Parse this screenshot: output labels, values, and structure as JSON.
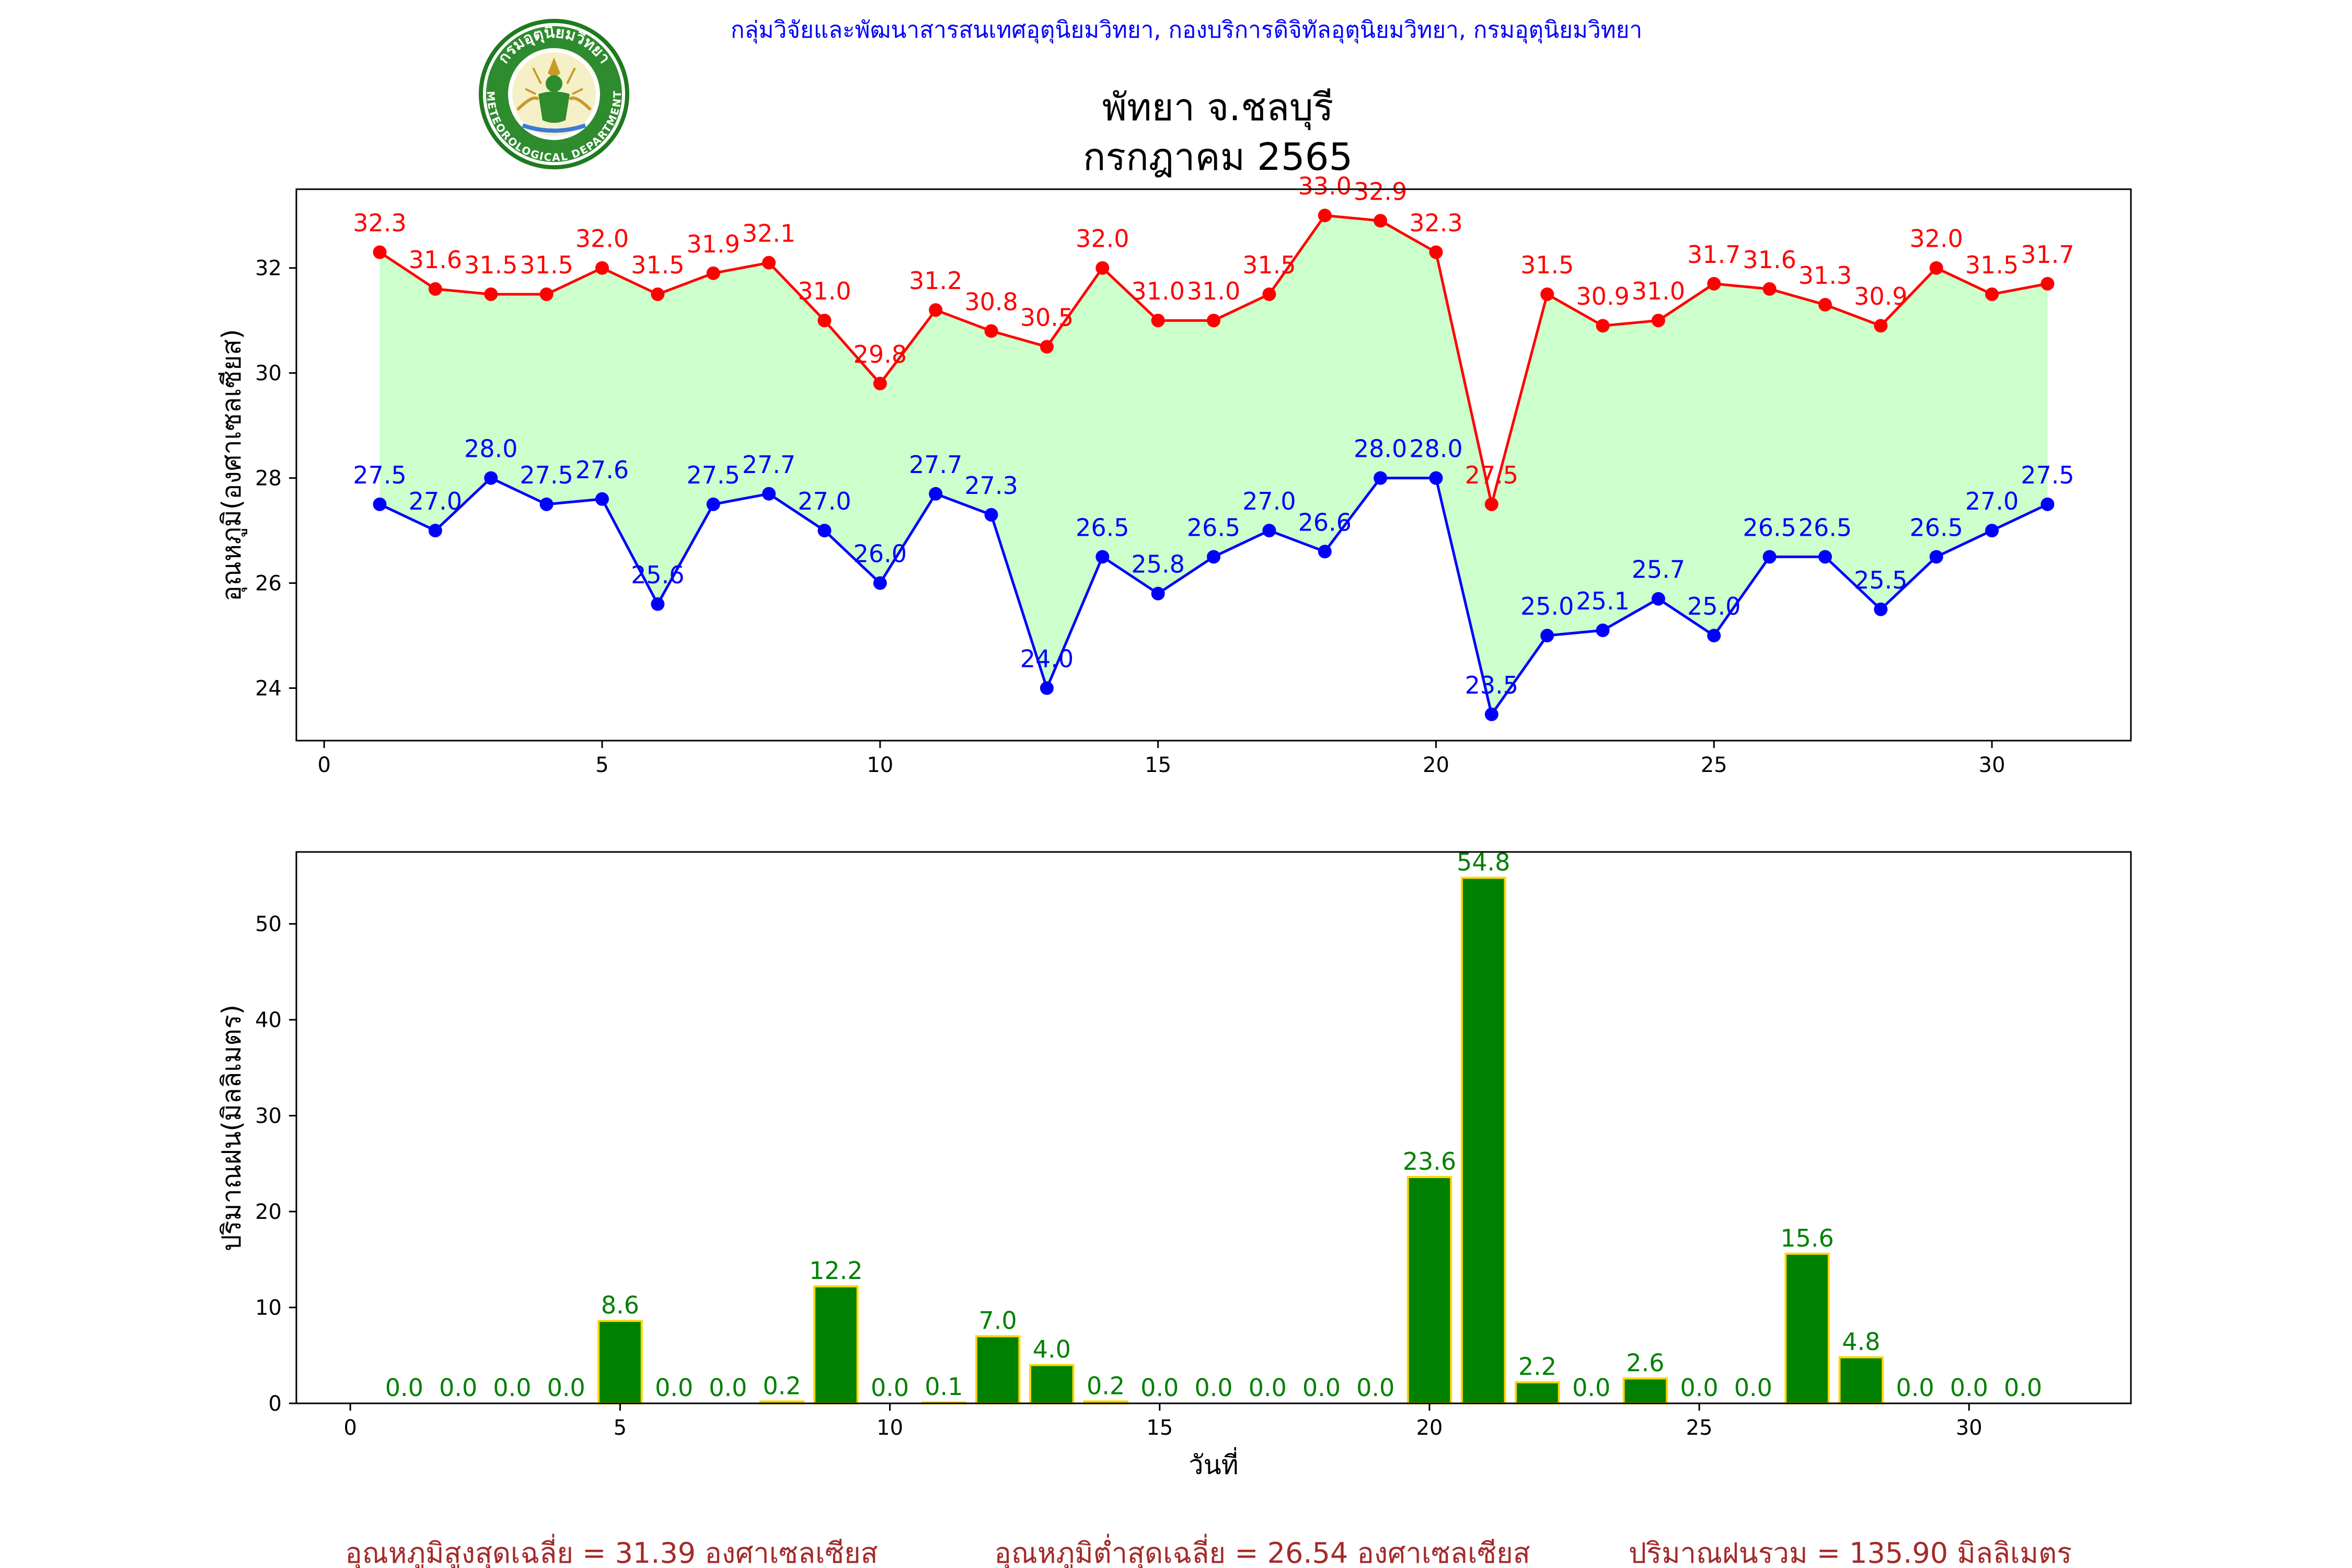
{
  "header": {
    "organization": "กลุ่มวิจัยและพัฒนาสารสนเทศอุตุนิยมวิทยา, กองบริการดิจิทัลอุตุนิยมวิทยา, กรมอุตุนิยมวิทยา",
    "title_line1": "พัทยา จ.ชลบุรี",
    "title_line2": "กรกฎาคม 2565",
    "logo_top_text": "กรมอุตุนิยมวิทยา",
    "logo_bottom_text": "METEOROLOGICAL DEPARTMENT"
  },
  "colors": {
    "max_temp": "#ff0000",
    "min_temp": "#0000ff",
    "fill": "#ccffcc",
    "rain_bar": "#008000",
    "rain_edge": "#ffd700",
    "rain_label": "#008000",
    "header_text": "#0000ff",
    "summary_text": "#a52a2a"
  },
  "chart_data": [
    {
      "type": "line",
      "ylabel": "อุณหภูมิ(องศาเซลเซียส)",
      "xlim": [
        -0.5,
        32.5
      ],
      "ylim": [
        23,
        33.5
      ],
      "xticks": [
        0,
        5,
        10,
        15,
        20,
        25,
        30
      ],
      "yticks": [
        24,
        26,
        28,
        30,
        32
      ],
      "fill_between": true,
      "x": [
        1,
        2,
        3,
        4,
        5,
        6,
        7,
        8,
        9,
        10,
        11,
        12,
        13,
        14,
        15,
        16,
        17,
        18,
        19,
        20,
        21,
        22,
        23,
        24,
        25,
        26,
        27,
        28,
        29,
        30,
        31
      ],
      "series": [
        {
          "values": [
            32.3,
            31.6,
            31.5,
            31.5,
            32.0,
            31.5,
            31.9,
            32.1,
            31.0,
            29.8,
            31.2,
            30.8,
            30.5,
            32.0,
            31.0,
            31.0,
            31.5,
            33.0,
            32.9,
            32.3,
            27.5,
            31.5,
            30.9,
            31.0,
            31.7,
            31.6,
            31.3,
            30.9,
            32.0,
            31.5,
            31.7
          ],
          "labels": [
            "32.3",
            "31.6",
            "31.5",
            "31.5",
            "32.0",
            "31.5",
            "31.9",
            "32.1",
            "31.0",
            "29.8",
            "31.2",
            "30.8",
            "30.5",
            "32.0",
            "31.0",
            "31.0",
            "31.5",
            "33.0",
            "32.9",
            "32.3",
            "27.5",
            "31.5",
            "30.9",
            "31.0",
            "31.7",
            "31.6",
            "31.3",
            "30.9",
            "32.0",
            "31.5",
            "31.7"
          ]
        },
        {
          "values": [
            27.5,
            27.0,
            28.0,
            27.5,
            27.6,
            25.6,
            27.5,
            27.7,
            27.0,
            26.0,
            27.7,
            27.3,
            24.0,
            26.5,
            25.8,
            26.5,
            27.0,
            26.6,
            28.0,
            28.0,
            23.5,
            25.0,
            25.1,
            25.7,
            25.0,
            26.5,
            26.5,
            25.5,
            26.5,
            27.0,
            27.5
          ],
          "labels": [
            "27.5",
            "27.0",
            "28.0",
            "27.5",
            "27.6",
            "25.6",
            "27.5",
            "27.7",
            "27.0",
            "26.0",
            "27.7",
            "27.3",
            "24.0",
            "26.5",
            "25.8",
            "26.5",
            "27.0",
            "26.6",
            "28.0",
            "28.0",
            "23.5",
            "25.0",
            "25.1",
            "25.7",
            "25.0",
            "26.5",
            "26.5",
            "25.5",
            "26.5",
            "27.0",
            "27.5"
          ]
        }
      ]
    },
    {
      "type": "bar",
      "xlabel": "วันที่",
      "ylabel": "ปริมาณฝน(มิลลิเมตร)",
      "xlim": [
        -1.0,
        33.0
      ],
      "ylim": [
        0,
        57.5
      ],
      "xticks": [
        0,
        5,
        10,
        15,
        20,
        25,
        30
      ],
      "yticks": [
        0,
        10,
        20,
        30,
        40,
        50
      ],
      "x": [
        1,
        2,
        3,
        4,
        5,
        6,
        7,
        8,
        9,
        10,
        11,
        12,
        13,
        14,
        15,
        16,
        17,
        18,
        19,
        20,
        21,
        22,
        23,
        24,
        25,
        26,
        27,
        28,
        29,
        30,
        31
      ],
      "values": [
        0.0,
        0.0,
        0.0,
        0.0,
        8.6,
        0.0,
        0.0,
        0.2,
        12.2,
        0.0,
        0.1,
        7.0,
        4.0,
        0.2,
        0.0,
        0.0,
        0.0,
        0.0,
        0.0,
        23.6,
        54.8,
        2.2,
        0.0,
        2.6,
        0.0,
        0.0,
        15.6,
        4.8,
        0.0,
        0.0,
        0.0
      ],
      "labels": [
        "0.0",
        "0.0",
        "0.0",
        "0.0",
        "8.6",
        "0.0",
        "0.0",
        "0.2",
        "12.2",
        "0.0",
        "0.1",
        "7.0",
        "4.0",
        "0.2",
        "0.0",
        "0.0",
        "0.0",
        "0.0",
        "0.0",
        "23.6",
        "54.8",
        "2.2",
        "0.0",
        "2.6",
        "0.0",
        "0.0",
        "15.6",
        "4.8",
        "0.0",
        "0.0",
        "0.0"
      ]
    }
  ],
  "summary": {
    "avg_max": "อุณหภูมิสูงสุดเฉลี่ย = 31.39 องศาเซลเซียส",
    "avg_min": "อุณหภูมิต่ำสุดเฉลี่ย = 26.54 องศาเซลเซียส",
    "total_rain": "ปริมาณฝนรวม = 135.90 มิลลิเมตร"
  }
}
